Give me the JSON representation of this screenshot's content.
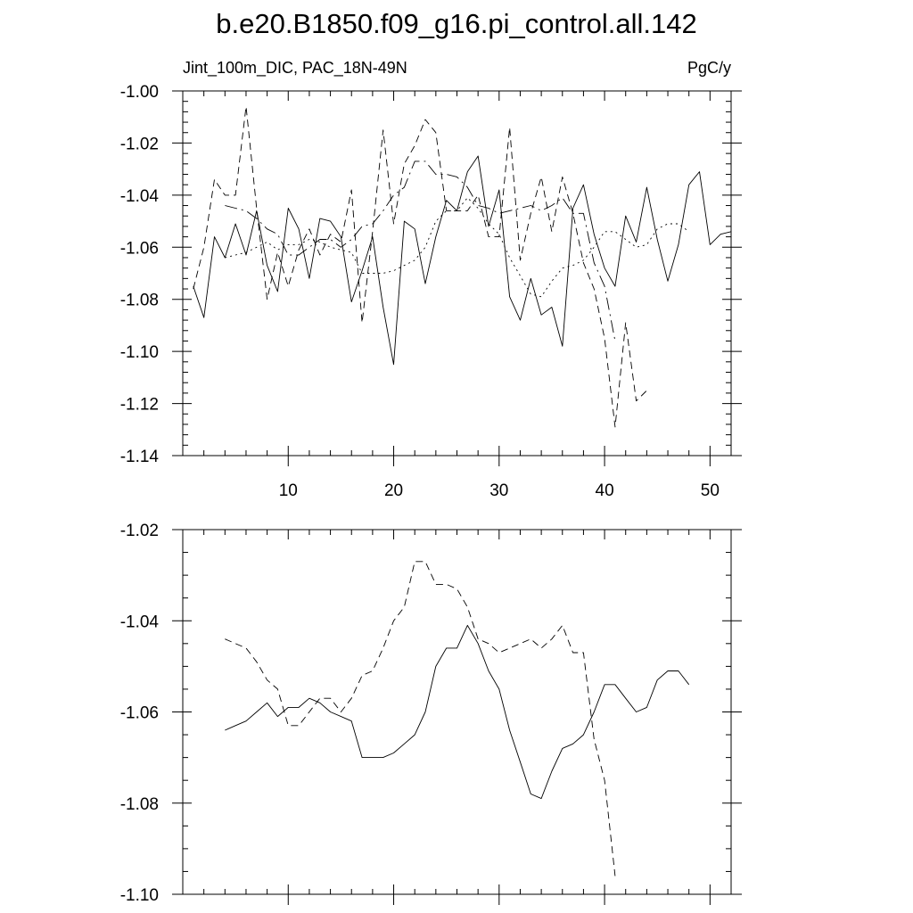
{
  "title": "b.e20.B1850.f09_g16.pi_control.all.142",
  "subtitle_left": "Jint_100m_DIC, PAC_18N-49N",
  "subtitle_right": "PgC/y",
  "chart_data": [
    {
      "type": "line",
      "xlim": [
        0,
        52
      ],
      "ylim": [
        -1.14,
        -1.0
      ],
      "xticks": [
        10,
        20,
        30,
        40,
        50
      ],
      "yticks": [
        -1.14,
        -1.12,
        -1.1,
        -1.08,
        -1.06,
        -1.04,
        -1.02,
        -1.0
      ],
      "ytick_labels": [
        "-1.14",
        "-1.12",
        "-1.10",
        "-1.08",
        "-1.06",
        "-1.04",
        "-1.02",
        "-1.00"
      ],
      "xtick_labels": [
        "10",
        "20",
        "30",
        "40",
        "50"
      ],
      "series": [
        {
          "style": "solid",
          "x": [
            1,
            2,
            3,
            4,
            5,
            6,
            7,
            8,
            9,
            10,
            11,
            12,
            13,
            14,
            15,
            16,
            17,
            18,
            19,
            20,
            21,
            22,
            23,
            24,
            25,
            26,
            27,
            28,
            29,
            30,
            31,
            32,
            33,
            34,
            35,
            36,
            37,
            38,
            39,
            40,
            41,
            42,
            43,
            44,
            45,
            46,
            47,
            48,
            49,
            50,
            51,
            52
          ],
          "y": [
            -1.075,
            -1.087,
            -1.056,
            -1.064,
            -1.051,
            -1.063,
            -1.046,
            -1.067,
            -1.077,
            -1.045,
            -1.053,
            -1.072,
            -1.049,
            -1.05,
            -1.056,
            -1.081,
            -1.069,
            -1.056,
            -1.083,
            -1.105,
            -1.05,
            -1.053,
            -1.074,
            -1.056,
            -1.042,
            -1.046,
            -1.031,
            -1.025,
            -1.052,
            -1.038,
            -1.079,
            -1.088,
            -1.072,
            -1.086,
            -1.083,
            -1.098,
            -1.045,
            -1.036,
            -1.055,
            -1.068,
            -1.075,
            -1.048,
            -1.058,
            -1.037,
            -1.057,
            -1.073,
            -1.059,
            -1.036,
            -1.031,
            -1.059,
            -1.055,
            -1.054
          ]
        },
        {
          "style": "dashed",
          "x": [
            1,
            2,
            3,
            4,
            5,
            6,
            7,
            8,
            9,
            10,
            11,
            12,
            13,
            14,
            15,
            16,
            17,
            18,
            19,
            20,
            21,
            22,
            23,
            24,
            25,
            26,
            27,
            28,
            29,
            30,
            31,
            32,
            33,
            34,
            35,
            36,
            37,
            38,
            39,
            40,
            41,
            42,
            43,
            44
          ],
          "y": [
            -1.076,
            -1.06,
            -1.034,
            -1.04,
            -1.04,
            -1.006,
            -1.045,
            -1.08,
            -1.062,
            -1.075,
            -1.061,
            -1.053,
            -1.063,
            -1.055,
            -1.058,
            -1.038,
            -1.089,
            -1.054,
            -1.015,
            -1.051,
            -1.028,
            -1.021,
            -1.011,
            -1.016,
            -1.046,
            -1.046,
            -1.046,
            -1.04,
            -1.056,
            -1.056,
            -1.014,
            -1.065,
            -1.047,
            -1.033,
            -1.054,
            -1.033,
            -1.047,
            -1.066,
            -1.076,
            -1.095,
            -1.129,
            -1.089,
            -1.119,
            -1.115
          ]
        },
        {
          "style": "long-dash",
          "x": [
            4,
            5,
            6,
            7,
            8,
            9,
            10,
            11,
            12,
            13,
            14,
            15,
            16,
            17,
            18,
            19,
            20,
            21,
            22,
            23,
            24,
            25,
            26,
            27,
            28,
            29,
            30,
            31,
            32,
            33,
            34,
            35,
            36,
            37,
            38,
            39,
            40,
            41
          ],
          "y": [
            -1.044,
            -1.045,
            -1.046,
            -1.049,
            -1.053,
            -1.055,
            -1.063,
            -1.063,
            -1.06,
            -1.057,
            -1.057,
            -1.06,
            -1.057,
            -1.052,
            -1.051,
            -1.046,
            -1.04,
            -1.037,
            -1.027,
            -1.027,
            -1.032,
            -1.032,
            -1.033,
            -1.037,
            -1.044,
            -1.045,
            -1.047,
            -1.046,
            -1.045,
            -1.044,
            -1.046,
            -1.044,
            -1.041,
            -1.047,
            -1.047,
            -1.066,
            -1.075,
            -1.096
          ]
        },
        {
          "style": "dotted",
          "x": [
            4,
            5,
            6,
            7,
            8,
            9,
            10,
            11,
            12,
            13,
            14,
            15,
            16,
            17,
            18,
            19,
            20,
            21,
            22,
            23,
            24,
            25,
            26,
            27,
            28,
            29,
            30,
            31,
            32,
            33,
            34,
            35,
            36,
            37,
            38,
            39,
            40,
            41,
            42,
            43,
            44,
            45,
            46,
            47,
            48
          ],
          "y": [
            -1.064,
            -1.063,
            -1.062,
            -1.06,
            -1.058,
            -1.061,
            -1.059,
            -1.059,
            -1.057,
            -1.058,
            -1.06,
            -1.061,
            -1.062,
            -1.07,
            -1.07,
            -1.07,
            -1.069,
            -1.067,
            -1.065,
            -1.06,
            -1.05,
            -1.046,
            -1.046,
            -1.041,
            -1.045,
            -1.051,
            -1.055,
            -1.064,
            -1.071,
            -1.078,
            -1.079,
            -1.073,
            -1.068,
            -1.067,
            -1.065,
            -1.06,
            -1.054,
            -1.054,
            -1.057,
            -1.06,
            -1.059,
            -1.053,
            -1.051,
            -1.051,
            -1.054
          ]
        }
      ]
    },
    {
      "type": "line",
      "xlim": [
        0,
        52
      ],
      "ylim": [
        -1.1,
        -1.02
      ],
      "xticks": [
        10,
        20,
        30,
        40,
        50
      ],
      "yticks": [
        -1.1,
        -1.08,
        -1.06,
        -1.04,
        -1.02
      ],
      "ytick_labels": [
        "-1.10",
        "-1.08",
        "-1.06",
        "-1.04",
        "-1.02"
      ],
      "series": [
        {
          "style": "solid",
          "x": [
            4,
            5,
            6,
            7,
            8,
            9,
            10,
            11,
            12,
            13,
            14,
            15,
            16,
            17,
            18,
            19,
            20,
            21,
            22,
            23,
            24,
            25,
            26,
            27,
            28,
            29,
            30,
            31,
            32,
            33,
            34,
            35,
            36,
            37,
            38,
            39,
            40,
            41,
            42,
            43,
            44,
            45,
            46,
            47,
            48
          ],
          "y": [
            -1.064,
            -1.063,
            -1.062,
            -1.06,
            -1.058,
            -1.061,
            -1.059,
            -1.059,
            -1.057,
            -1.058,
            -1.06,
            -1.061,
            -1.062,
            -1.07,
            -1.07,
            -1.07,
            -1.069,
            -1.067,
            -1.065,
            -1.06,
            -1.05,
            -1.046,
            -1.046,
            -1.041,
            -1.045,
            -1.051,
            -1.055,
            -1.064,
            -1.071,
            -1.078,
            -1.079,
            -1.073,
            -1.068,
            -1.067,
            -1.065,
            -1.06,
            -1.054,
            -1.054,
            -1.057,
            -1.06,
            -1.059,
            -1.053,
            -1.051,
            -1.051,
            -1.054
          ]
        },
        {
          "style": "dashed",
          "x": [
            4,
            5,
            6,
            7,
            8,
            9,
            10,
            11,
            12,
            13,
            14,
            15,
            16,
            17,
            18,
            19,
            20,
            21,
            22,
            23,
            24,
            25,
            26,
            27,
            28,
            29,
            30,
            31,
            32,
            33,
            34,
            35,
            36,
            37,
            38,
            39,
            40,
            41
          ],
          "y": [
            -1.044,
            -1.045,
            -1.046,
            -1.049,
            -1.053,
            -1.055,
            -1.063,
            -1.063,
            -1.06,
            -1.057,
            -1.057,
            -1.06,
            -1.057,
            -1.052,
            -1.051,
            -1.046,
            -1.04,
            -1.037,
            -1.027,
            -1.027,
            -1.032,
            -1.032,
            -1.033,
            -1.037,
            -1.044,
            -1.045,
            -1.047,
            -1.046,
            -1.045,
            -1.044,
            -1.046,
            -1.044,
            -1.041,
            -1.047,
            -1.047,
            -1.066,
            -1.075,
            -1.096
          ]
        }
      ]
    }
  ]
}
